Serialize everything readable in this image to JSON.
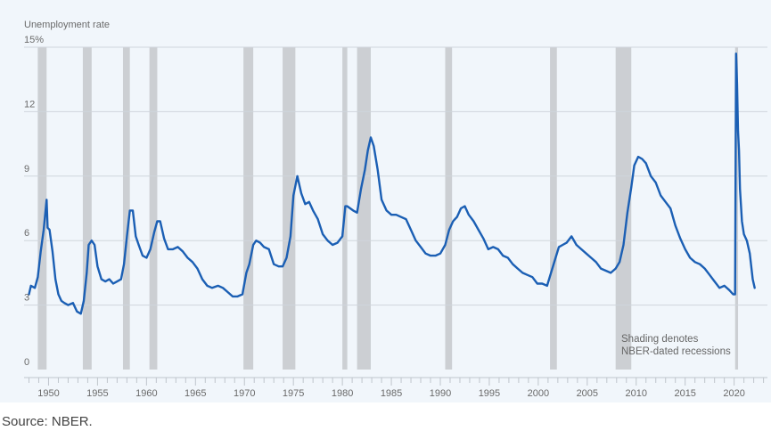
{
  "chart_data": {
    "type": "line",
    "ylabel": "Unemployment rate",
    "y_ticks": [
      "15%",
      "12",
      "9",
      "6",
      "3",
      "0"
    ],
    "y_tick_values": [
      15,
      12,
      9,
      6,
      3,
      0
    ],
    "ylim": [
      0,
      15
    ],
    "xlim": [
      1947.5,
      2023.4
    ],
    "x_ticks": [
      "1950",
      "1955",
      "1960",
      "1965",
      "1970",
      "1975",
      "1980",
      "1985",
      "1990",
      "1995",
      "2000",
      "2005",
      "2010",
      "2015",
      "2020"
    ],
    "x_tick_values": [
      1950,
      1955,
      1960,
      1965,
      1970,
      1975,
      1980,
      1985,
      1990,
      1995,
      2000,
      2005,
      2010,
      2015,
      2020
    ],
    "grid": "horizontal",
    "annotation": [
      "Shading denotes",
      "NBER-dated recessions"
    ],
    "line_color": "#1b5fb4",
    "recession_color": "#cccfd3",
    "recessions": [
      [
        1948.9,
        1949.8
      ],
      [
        1953.5,
        1954.4
      ],
      [
        1957.6,
        1958.3
      ],
      [
        1960.3,
        1961.1
      ],
      [
        1969.9,
        1970.9
      ],
      [
        1973.9,
        1975.2
      ],
      [
        1980.0,
        1980.5
      ],
      [
        1981.5,
        1982.9
      ],
      [
        1990.5,
        1991.2
      ],
      [
        2001.2,
        2001.9
      ],
      [
        2007.9,
        2009.5
      ],
      [
        2020.1,
        2020.4
      ]
    ],
    "series": [
      {
        "x": [
          1948.0,
          1948.2,
          1948.6,
          1948.9,
          1949.2,
          1949.5,
          1949.8,
          1949.9,
          1950.1,
          1950.4,
          1950.7,
          1951.0,
          1951.3,
          1951.6,
          1952.0,
          1952.5,
          1952.9,
          1953.3,
          1953.6,
          1953.9,
          1954.1,
          1954.4,
          1954.7,
          1955.0,
          1955.4,
          1955.8,
          1956.2,
          1956.6,
          1957.0,
          1957.4,
          1957.7,
          1958.0,
          1958.3,
          1958.6,
          1958.9,
          1959.2,
          1959.6,
          1960.0,
          1960.4,
          1960.8,
          1961.1,
          1961.4,
          1961.8,
          1962.2,
          1962.7,
          1963.2,
          1963.7,
          1964.2,
          1964.7,
          1965.2,
          1965.7,
          1966.2,
          1966.7,
          1967.3,
          1967.8,
          1968.3,
          1968.8,
          1969.3,
          1969.8,
          1970.2,
          1970.5,
          1970.9,
          1971.2,
          1971.6,
          1972.0,
          1972.5,
          1973.0,
          1973.5,
          1973.9,
          1974.3,
          1974.7,
          1975.0,
          1975.4,
          1975.8,
          1976.2,
          1976.6,
          1977.0,
          1977.5,
          1978.0,
          1978.5,
          1979.0,
          1979.5,
          1980.0,
          1980.3,
          1980.5,
          1980.8,
          1981.1,
          1981.5,
          1981.9,
          1982.3,
          1982.6,
          1982.9,
          1983.2,
          1983.6,
          1984.0,
          1984.5,
          1985.0,
          1985.5,
          1986.0,
          1986.5,
          1987.0,
          1987.5,
          1988.0,
          1988.5,
          1989.0,
          1989.5,
          1990.0,
          1990.5,
          1990.9,
          1991.3,
          1991.7,
          1992.1,
          1992.5,
          1992.9,
          1993.4,
          1993.9,
          1994.4,
          1994.9,
          1995.4,
          1995.9,
          1996.4,
          1996.9,
          1997.4,
          1997.9,
          1998.4,
          1998.9,
          1999.4,
          1999.9,
          2000.4,
          2000.9,
          2001.3,
          2001.7,
          2002.1,
          2002.5,
          2002.9,
          2003.4,
          2003.9,
          2004.4,
          2004.9,
          2005.4,
          2005.9,
          2006.4,
          2006.9,
          2007.4,
          2007.9,
          2008.3,
          2008.7,
          2009.1,
          2009.5,
          2009.8,
          2010.2,
          2010.6,
          2011.0,
          2011.5,
          2012.0,
          2012.5,
          2013.0,
          2013.5,
          2014.0,
          2014.5,
          2015.0,
          2015.5,
          2016.0,
          2016.5,
          2017.0,
          2017.5,
          2018.0,
          2018.5,
          2019.0,
          2019.5,
          2019.9,
          2020.1,
          2020.2,
          2020.3,
          2020.4,
          2020.5,
          2020.6,
          2020.8,
          2021.0,
          2021.3,
          2021.6,
          2021.9,
          2022.1
        ],
        "values": [
          3.5,
          3.9,
          3.8,
          4.3,
          5.5,
          6.5,
          7.9,
          6.6,
          6.5,
          5.5,
          4.2,
          3.5,
          3.2,
          3.1,
          3.0,
          3.1,
          2.7,
          2.6,
          3.2,
          4.5,
          5.8,
          6.0,
          5.8,
          4.8,
          4.2,
          4.1,
          4.2,
          4.0,
          4.1,
          4.2,
          4.9,
          6.2,
          7.4,
          7.4,
          6.2,
          5.8,
          5.3,
          5.2,
          5.6,
          6.4,
          6.9,
          6.9,
          6.1,
          5.6,
          5.6,
          5.7,
          5.5,
          5.2,
          5.0,
          4.7,
          4.2,
          3.9,
          3.8,
          3.9,
          3.8,
          3.6,
          3.4,
          3.4,
          3.5,
          4.5,
          4.9,
          5.8,
          6.0,
          5.9,
          5.7,
          5.6,
          4.9,
          4.8,
          4.8,
          5.2,
          6.2,
          8.1,
          9.0,
          8.2,
          7.7,
          7.8,
          7.4,
          7.0,
          6.3,
          6.0,
          5.8,
          5.9,
          6.2,
          7.6,
          7.6,
          7.5,
          7.4,
          7.3,
          8.4,
          9.3,
          10.2,
          10.8,
          10.4,
          9.3,
          7.9,
          7.4,
          7.2,
          7.2,
          7.1,
          7.0,
          6.5,
          6.0,
          5.7,
          5.4,
          5.3,
          5.3,
          5.4,
          5.8,
          6.5,
          6.9,
          7.1,
          7.5,
          7.6,
          7.2,
          6.9,
          6.5,
          6.1,
          5.6,
          5.7,
          5.6,
          5.3,
          5.2,
          4.9,
          4.7,
          4.5,
          4.4,
          4.3,
          4.0,
          4.0,
          3.9,
          4.5,
          5.1,
          5.7,
          5.8,
          5.9,
          6.2,
          5.8,
          5.6,
          5.4,
          5.2,
          5.0,
          4.7,
          4.6,
          4.5,
          4.7,
          5.0,
          5.8,
          7.3,
          8.5,
          9.5,
          9.9,
          9.8,
          9.6,
          9.0,
          8.7,
          8.1,
          7.8,
          7.5,
          6.7,
          6.1,
          5.6,
          5.2,
          5.0,
          4.9,
          4.7,
          4.4,
          4.1,
          3.8,
          3.9,
          3.7,
          3.5,
          3.5,
          14.7,
          13.3,
          11.1,
          10.2,
          8.4,
          6.9,
          6.3,
          6.0,
          5.4,
          4.2,
          3.8
        ]
      }
    ]
  },
  "source": "Source: NBER."
}
